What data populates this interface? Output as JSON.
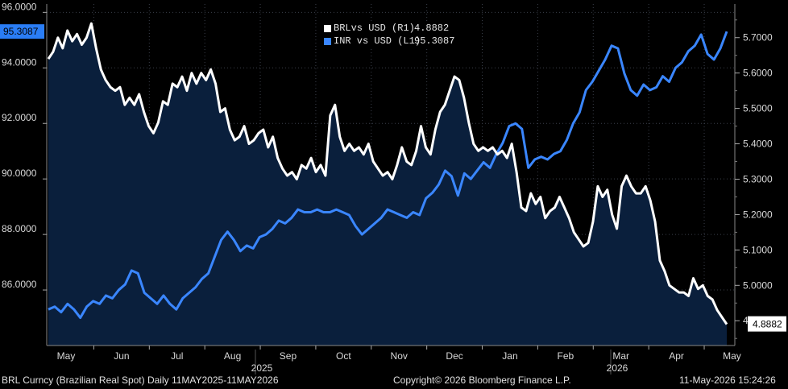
{
  "chart_data": {
    "type": "line",
    "x_labels": [
      "May",
      "Jun",
      "Jul",
      "Aug",
      "Sep",
      "Oct",
      "Nov",
      "Dec",
      "Jan",
      "Feb",
      "Mar",
      "Apr",
      "May"
    ],
    "year_labels": [
      "2025",
      "2026"
    ],
    "left_axis": {
      "ylim": [
        84.0,
        96.3
      ],
      "ticks": [
        "86.0000",
        "88.0000",
        "90.0000",
        "92.0000",
        "94.0000",
        "96.0000"
      ],
      "tick_values": [
        86,
        88,
        90,
        92,
        94,
        96
      ]
    },
    "right_axis": {
      "ylim": [
        4.83,
        5.795
      ],
      "ticks": [
        "4.9000",
        "5.0000",
        "5.1000",
        "5.2000",
        "5.3000",
        "5.4000",
        "5.5000",
        "5.6000",
        "5.7000"
      ],
      "tick_values": [
        4.9,
        5.0,
        5.1,
        5.2,
        5.3,
        5.4,
        5.5,
        5.6,
        5.7
      ]
    },
    "grid": true,
    "legend_position": "top-center",
    "series": [
      {
        "name": "BRLvs USD (R1)",
        "value_label": "4.8882",
        "axis": "right",
        "color": "#ffffff",
        "area_fill": "#0a1f3c",
        "values": [
          5.64,
          5.66,
          5.7,
          5.67,
          5.72,
          5.69,
          5.71,
          5.68,
          5.7,
          5.74,
          5.67,
          5.61,
          5.58,
          5.56,
          5.55,
          5.56,
          5.51,
          5.53,
          5.51,
          5.54,
          5.49,
          5.45,
          5.43,
          5.46,
          5.52,
          5.51,
          5.57,
          5.56,
          5.59,
          5.55,
          5.6,
          5.57,
          5.6,
          5.58,
          5.61,
          5.57,
          5.49,
          5.5,
          5.44,
          5.41,
          5.42,
          5.45,
          5.4,
          5.41,
          5.43,
          5.44,
          5.39,
          5.42,
          5.36,
          5.33,
          5.31,
          5.32,
          5.3,
          5.34,
          5.33,
          5.36,
          5.32,
          5.34,
          5.31,
          5.48,
          5.51,
          5.42,
          5.38,
          5.4,
          5.38,
          5.39,
          5.37,
          5.4,
          5.35,
          5.33,
          5.31,
          5.32,
          5.3,
          5.34,
          5.39,
          5.35,
          5.34,
          5.38,
          5.45,
          5.39,
          5.37,
          5.44,
          5.49,
          5.51,
          5.55,
          5.59,
          5.58,
          5.53,
          5.46,
          5.4,
          5.38,
          5.39,
          5.38,
          5.39,
          5.37,
          5.38,
          5.36,
          5.4,
          5.32,
          5.22,
          5.21,
          5.26,
          5.23,
          5.25,
          5.19,
          5.21,
          5.22,
          5.25,
          5.22,
          5.19,
          5.15,
          5.13,
          5.11,
          5.12,
          5.18,
          5.28,
          5.25,
          5.27,
          5.2,
          5.16,
          5.28,
          5.31,
          5.28,
          5.26,
          5.26,
          5.28,
          5.24,
          5.18,
          5.07,
          5.04,
          5.0,
          4.99,
          4.98,
          4.98,
          4.97,
          5.02,
          4.99,
          5.0,
          4.97,
          4.96,
          4.93,
          4.91,
          4.89
        ]
      },
      {
        "name": "INR vs USD (L1)",
        "value_label": "95.3087",
        "axis": "left",
        "color": "#3a86ff",
        "values": [
          85.3,
          85.4,
          85.2,
          85.5,
          85.3,
          85.0,
          85.4,
          85.6,
          85.5,
          85.8,
          85.7,
          86.0,
          86.2,
          86.7,
          86.6,
          85.9,
          85.7,
          85.5,
          85.8,
          85.5,
          85.3,
          85.7,
          85.9,
          86.1,
          86.4,
          86.6,
          87.2,
          87.8,
          88.1,
          87.8,
          87.4,
          87.6,
          87.5,
          87.9,
          88.0,
          88.2,
          88.5,
          88.4,
          88.6,
          88.9,
          88.8,
          88.8,
          88.9,
          88.8,
          88.8,
          88.9,
          88.8,
          88.7,
          88.3,
          88.0,
          88.2,
          88.4,
          88.6,
          88.9,
          88.8,
          88.7,
          88.6,
          88.8,
          88.7,
          89.3,
          89.5,
          89.8,
          90.3,
          90.1,
          89.4,
          90.2,
          90.0,
          90.3,
          90.6,
          90.4,
          90.9,
          91.3,
          91.9,
          92.0,
          91.8,
          90.4,
          90.7,
          90.8,
          90.7,
          90.9,
          91.0,
          91.4,
          92.0,
          92.4,
          93.2,
          93.5,
          93.9,
          94.3,
          94.8,
          94.7,
          93.8,
          93.2,
          93.0,
          93.4,
          93.2,
          93.3,
          93.7,
          93.5,
          94.0,
          94.2,
          94.6,
          94.8,
          95.2,
          94.5,
          94.3,
          94.7,
          95.31
        ]
      }
    ]
  },
  "footer": {
    "left": "BRL Curncy (Brazilian Real Spot) Daily 11MAY2025-11MAY2026",
    "center": "Copyright© 2026 Bloomberg Finance L.P.",
    "right": "11-May-2026 15:24:26"
  }
}
